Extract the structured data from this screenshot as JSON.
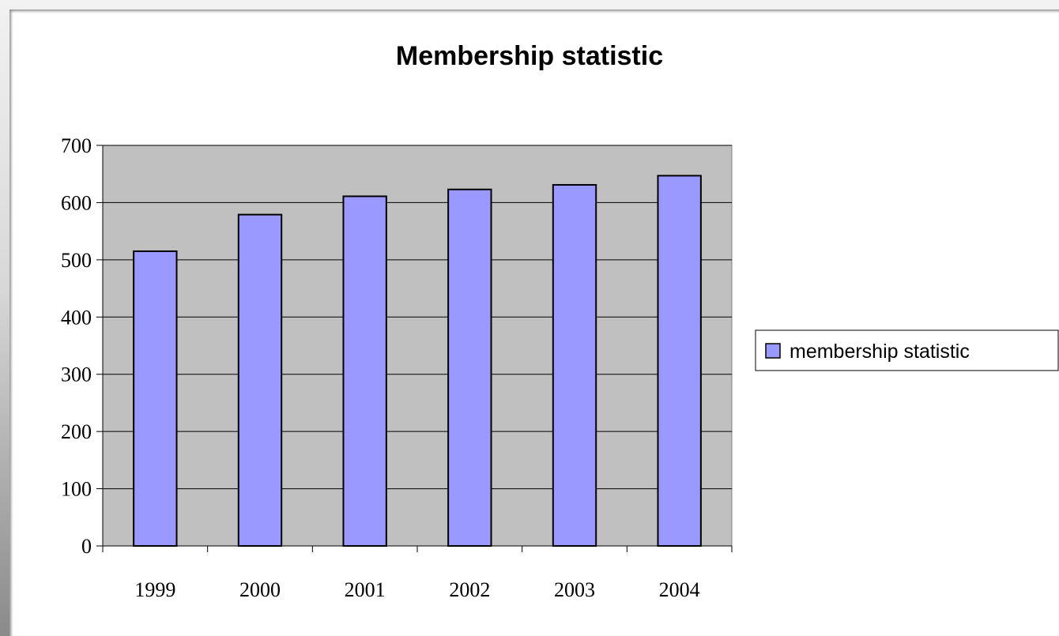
{
  "chart_data": {
    "type": "bar",
    "title": "Membership statistic",
    "categories": [
      "1999",
      "2000",
      "2001",
      "2002",
      "2003",
      "2004"
    ],
    "series": [
      {
        "name": "membership statistic",
        "values": [
          515,
          579,
          611,
          623,
          631,
          647
        ],
        "color": "#9999ff"
      }
    ],
    "ylim": [
      0,
      700
    ],
    "yticks": [
      "0",
      "100",
      "200",
      "300",
      "400",
      "500",
      "600",
      "700"
    ],
    "grid": true,
    "plot_background": "#c0c0c0",
    "legend_position": "right"
  }
}
